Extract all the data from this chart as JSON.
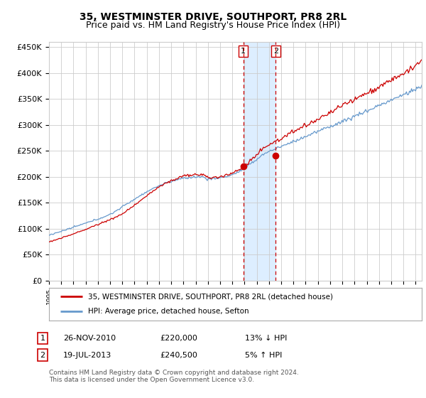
{
  "title": "35, WESTMINSTER DRIVE, SOUTHPORT, PR8 2RL",
  "subtitle": "Price paid vs. HM Land Registry's House Price Index (HPI)",
  "ylabel_ticks": [
    "£0",
    "£50K",
    "£100K",
    "£150K",
    "£200K",
    "£250K",
    "£300K",
    "£350K",
    "£400K",
    "£450K"
  ],
  "ytick_values": [
    0,
    50000,
    100000,
    150000,
    200000,
    250000,
    300000,
    350000,
    400000,
    450000
  ],
  "xlim_start": 1995.0,
  "xlim_end": 2025.5,
  "ylim": [
    0,
    460000
  ],
  "marker1_x": 2010.9,
  "marker1_y": 220000,
  "marker2_x": 2013.55,
  "marker2_y": 240500,
  "vline1_x": 2010.9,
  "vline2_x": 2013.55,
  "shade_x1": 2010.9,
  "shade_x2": 2013.55,
  "label1_text": "1",
  "label2_text": "2",
  "legend_line1": "35, WESTMINSTER DRIVE, SOUTHPORT, PR8 2RL (detached house)",
  "legend_line2": "HPI: Average price, detached house, Sefton",
  "table_row1_num": "1",
  "table_row1_date": "26-NOV-2010",
  "table_row1_price": "£220,000",
  "table_row1_hpi": "13% ↓ HPI",
  "table_row2_num": "2",
  "table_row2_date": "19-JUL-2013",
  "table_row2_price": "£240,500",
  "table_row2_hpi": "5% ↑ HPI",
  "footnote": "Contains HM Land Registry data © Crown copyright and database right 2024.\nThis data is licensed under the Open Government Licence v3.0.",
  "red_color": "#cc0000",
  "blue_color": "#6699cc",
  "shade_color": "#ddeeff",
  "bg_color": "#ffffff",
  "grid_color": "#cccccc",
  "title_fontsize": 10,
  "subtitle_fontsize": 9
}
